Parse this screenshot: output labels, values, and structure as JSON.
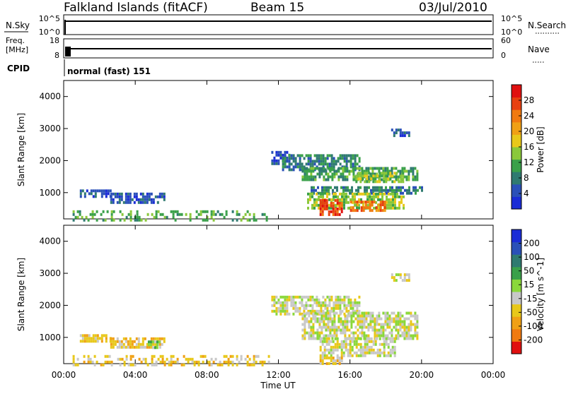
{
  "header": {
    "station": "Falkland Islands (fitACF)",
    "beam": "Beam 15",
    "date": "03/Jul/2010"
  },
  "status_panels": {
    "nsky_label": "N.Sky",
    "nsky_ticks": [
      "10^5",
      "10^0"
    ],
    "nsearch_label": "N.Search",
    "nsearch_ticks": [
      "10^5",
      "10^0"
    ],
    "freq_label_1": "Freq.",
    "freq_label_2": "[MHz]",
    "freq_ticks": [
      "18",
      "8"
    ],
    "nave_label": "Nave",
    "nave_ticks": [
      "60",
      "0"
    ],
    "cpid_label": "CPID",
    "cpid_value": "normal (fast) 151"
  },
  "chart_data": [
    {
      "type": "heatmap",
      "name": "power",
      "ylabel": "Slant Range [km]",
      "xlabel": "",
      "x_ticks": [
        "00:00",
        "04:00",
        "08:00",
        "12:00",
        "16:00",
        "20:00",
        "00:00"
      ],
      "xlim_hours": [
        0,
        24
      ],
      "ylim": [
        180,
        4500
      ],
      "y_ticks": [
        1000,
        2000,
        3000,
        4000
      ],
      "colorbar": {
        "label": "Power [dB]",
        "ticks": [
          "4",
          "8",
          "12",
          "16",
          "20",
          "24",
          "28"
        ],
        "colors": [
          "#1a2cd6",
          "#2a50b8",
          "#2f7a70",
          "#3aa04a",
          "#8ac83a",
          "#e8c81a",
          "#f0a015",
          "#f07a10",
          "#e84010",
          "#e01010"
        ]
      },
      "regions": [
        {
          "t0": 0.9,
          "t1": 2.6,
          "r0": 850,
          "r1": 1100,
          "level": 1
        },
        {
          "t0": 2.6,
          "t1": 5.6,
          "r0": 650,
          "r1": 1000,
          "level": 1
        },
        {
          "t0": 11.6,
          "t1": 12.6,
          "r0": 1900,
          "r1": 2300,
          "level": 1
        },
        {
          "t0": 12.2,
          "t1": 16.5,
          "r0": 1750,
          "r1": 2200,
          "level": 2
        },
        {
          "t0": 13.3,
          "t1": 19.8,
          "r0": 1400,
          "r1": 1800,
          "level": 3
        },
        {
          "t0": 16.3,
          "t1": 19.0,
          "r0": 1300,
          "r1": 1650,
          "level": 4
        },
        {
          "t0": 13.8,
          "t1": 20.0,
          "r0": 1000,
          "r1": 1200,
          "level": 2
        },
        {
          "t0": 13.6,
          "t1": 19.0,
          "r0": 500,
          "r1": 1000,
          "level": 4
        },
        {
          "t0": 14.3,
          "t1": 15.5,
          "r0": 300,
          "r1": 800,
          "level": 8
        },
        {
          "t0": 16.0,
          "t1": 18.0,
          "r0": 400,
          "r1": 750,
          "level": 7
        },
        {
          "t0": 18.3,
          "t1": 19.3,
          "r0": 2800,
          "r1": 3000,
          "level": 1
        },
        {
          "t0": 0.5,
          "t1": 11.5,
          "r0": 180,
          "r1": 450,
          "level": 3
        }
      ]
    },
    {
      "type": "heatmap",
      "name": "velocity",
      "ylabel": "Slant Range [km]",
      "xlabel": "Time UT",
      "x_ticks": [
        "00:00",
        "04:00",
        "08:00",
        "12:00",
        "16:00",
        "20:00",
        "00:00"
      ],
      "xlim_hours": [
        0,
        24
      ],
      "ylim": [
        180,
        4500
      ],
      "y_ticks": [
        1000,
        2000,
        3000,
        4000
      ],
      "colorbar": {
        "label": "Velocity [m s^-1]",
        "ticks": [
          "200",
          "100",
          "50",
          "15",
          "-15",
          "-50",
          "-100",
          "-200"
        ],
        "colors": [
          "#1a2cd6",
          "#2a50b8",
          "#2f7a70",
          "#3aa04a",
          "#8ad83a",
          "#c8c8c8",
          "#e8c81a",
          "#f0a015",
          "#f07a10",
          "#e01010"
        ]
      },
      "regions": [
        {
          "t0": 0.9,
          "t1": 2.6,
          "r0": 850,
          "r1": 1100,
          "level": 6
        },
        {
          "t0": 2.6,
          "t1": 5.6,
          "r0": 650,
          "r1": 1000,
          "level": 6
        },
        {
          "t0": 4.7,
          "t1": 5.4,
          "r0": 700,
          "r1": 900,
          "level": 4
        },
        {
          "t0": 11.6,
          "t1": 16.5,
          "r0": 1750,
          "r1": 2300,
          "level": 5
        },
        {
          "t0": 13.3,
          "t1": 19.8,
          "r0": 1000,
          "r1": 1800,
          "level": 5
        },
        {
          "t0": 14.3,
          "t1": 18.5,
          "r0": 450,
          "r1": 1000,
          "level": 5
        },
        {
          "t0": 14.3,
          "t1": 15.5,
          "r0": 200,
          "r1": 400,
          "level": 6
        },
        {
          "t0": 18.3,
          "t1": 19.3,
          "r0": 2800,
          "r1": 3000,
          "level": 5
        },
        {
          "t0": 0.5,
          "t1": 11.5,
          "r0": 180,
          "r1": 450,
          "level": 6
        }
      ]
    }
  ]
}
